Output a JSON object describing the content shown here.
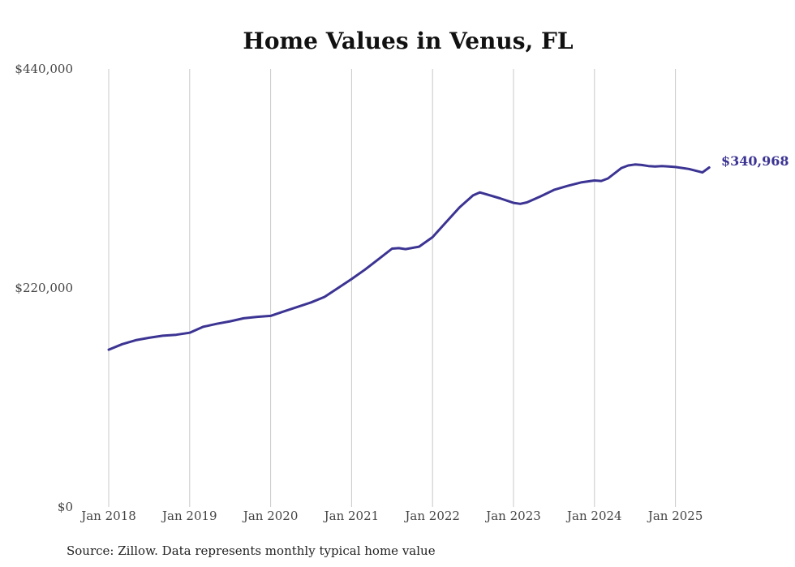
{
  "chart_data": {
    "type": "line",
    "title": "Home Values in Venus, FL",
    "xlabel": "",
    "ylabel": "",
    "ylim": [
      0,
      440000
    ],
    "y_ticks": [
      {
        "value": 0,
        "label": "$0"
      },
      {
        "value": 220000,
        "label": "$220,000"
      },
      {
        "value": 440000,
        "label": "$440,000"
      }
    ],
    "x_ticks": [
      "Jan 2018",
      "Jan 2019",
      "Jan 2020",
      "Jan 2021",
      "Jan 2022",
      "Jan 2023",
      "Jan 2024",
      "Jan 2025"
    ],
    "grid": "vertical",
    "line_color": "#3c3493",
    "x": [
      "2018-01",
      "2018-03",
      "2018-05",
      "2018-07",
      "2018-09",
      "2018-11",
      "2019-01",
      "2019-03",
      "2019-05",
      "2019-07",
      "2019-09",
      "2019-11",
      "2020-01",
      "2020-03",
      "2020-05",
      "2020-07",
      "2020-09",
      "2020-11",
      "2021-01",
      "2021-03",
      "2021-05",
      "2021-07",
      "2021-08",
      "2021-09",
      "2021-11",
      "2022-01",
      "2022-03",
      "2022-05",
      "2022-07",
      "2022-08",
      "2022-09",
      "2022-11",
      "2023-01",
      "2023-02",
      "2023-03",
      "2023-05",
      "2023-07",
      "2023-09",
      "2023-11",
      "2024-01",
      "2024-02",
      "2024-03",
      "2024-05",
      "2024-06",
      "2024-07",
      "2024-08",
      "2024-09",
      "2024-10",
      "2024-11",
      "2024-12",
      "2025-01",
      "2025-03",
      "2025-05",
      "2025-06"
    ],
    "series": [
      {
        "values": [
          158000,
          163500,
          167500,
          170000,
          172000,
          173000,
          175000,
          181000,
          184000,
          186500,
          189500,
          191000,
          192000,
          196500,
          201000,
          205500,
          211000,
          220000,
          229000,
          238500,
          249000,
          259500,
          260000,
          259000,
          261500,
          271000,
          286000,
          301000,
          313000,
          316000,
          314000,
          310000,
          305500,
          304500,
          306000,
          312000,
          318500,
          322500,
          326000,
          328000,
          327500,
          330000,
          340500,
          343000,
          344000,
          343500,
          342500,
          342000,
          342500,
          342000,
          341500,
          339500,
          336000,
          340968
        ]
      }
    ],
    "end_label": "$340,968",
    "source": "Source: Zillow. Data represents monthly typical home value"
  }
}
